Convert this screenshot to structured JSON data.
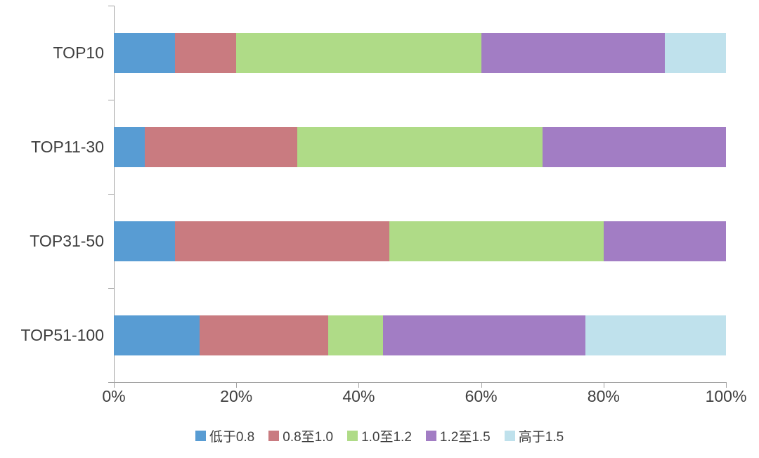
{
  "chart_data": {
    "type": "bar",
    "orientation": "horizontal",
    "stacked": true,
    "title": "",
    "xlabel": "",
    "ylabel": "",
    "categories": [
      "TOP10",
      "TOP11-30",
      "TOP31-50",
      "TOP51-100"
    ],
    "series": [
      {
        "name": "低于0.8",
        "color": "#589CD3",
        "values": [
          10,
          5,
          10,
          14
        ]
      },
      {
        "name": "0.8至1.0",
        "color": "#C97B80",
        "values": [
          10,
          25,
          35,
          21
        ]
      },
      {
        "name": "1.0至1.2",
        "color": "#AFDB87",
        "values": [
          40,
          40,
          35,
          9
        ]
      },
      {
        "name": "1.2至1.5",
        "color": "#A27DC4",
        "values": [
          30,
          30,
          20,
          33
        ]
      },
      {
        "name": "高于1.5",
        "color": "#BFE1EC",
        "values": [
          10,
          0,
          0,
          23
        ]
      }
    ],
    "x_axis": {
      "min": 0,
      "max": 100,
      "unit": "%",
      "tick_labels": [
        "0%",
        "20%",
        "40%",
        "60%",
        "80%",
        "100%"
      ]
    },
    "legend_position": "bottom",
    "grid": false,
    "axis_color": "#a3a3a3",
    "text_color": "#3f3f3f",
    "background_color": "#ffffff"
  }
}
